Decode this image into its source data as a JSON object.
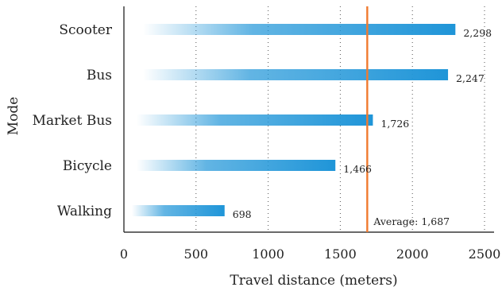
{
  "chart_data": {
    "type": "bar",
    "orientation": "horizontal",
    "categories": [
      "Scooter",
      "Bus",
      "Market Bus",
      "Bicycle",
      "Walking"
    ],
    "values": [
      2298,
      2247,
      1726,
      1466,
      698
    ],
    "value_labels": [
      "2,298",
      "2,247",
      "1,726",
      "1,466",
      "698"
    ],
    "xlabel": "Travel distance (meters)",
    "ylabel": "Mode",
    "xlim": [
      0,
      2500
    ],
    "x_ticks": [
      "0",
      "500",
      "1000",
      "1500",
      "2000",
      "2500"
    ],
    "x_tick_values": [
      0,
      500,
      1000,
      1500,
      2000,
      2500
    ],
    "grid": "vertical dotted",
    "reference_line": {
      "value": 1687,
      "label": "Average: 1,687",
      "color": "#f07a2e"
    },
    "bar_color": "#1f95d8"
  }
}
